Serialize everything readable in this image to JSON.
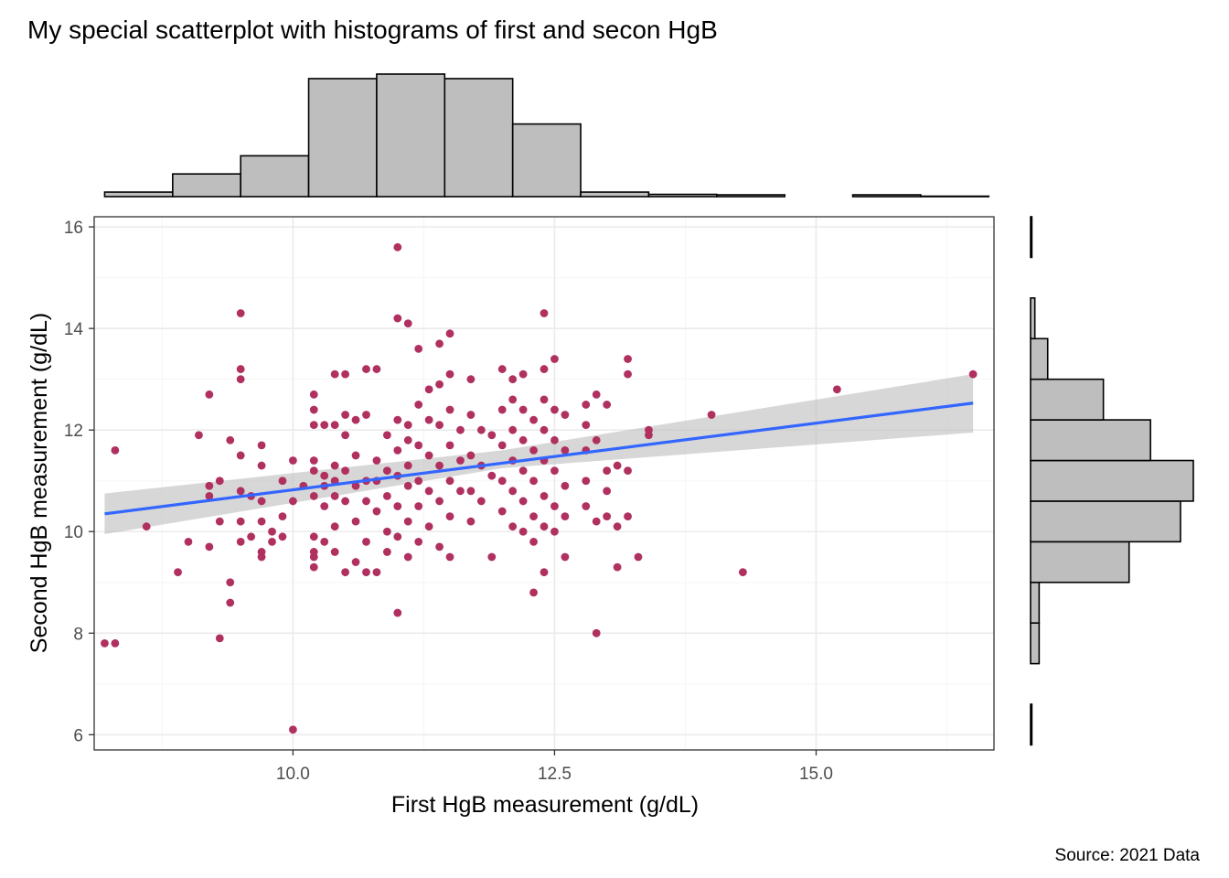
{
  "colors": {
    "points": "#b03060",
    "fit_line": "#3366ff",
    "ci_band": "#bdbdbd",
    "histogram_fill": "#bebebe",
    "grid_major": "#ebebeb",
    "grid_minor": "#f5f5f5",
    "panel_border": "#333333"
  },
  "chart_data": {
    "type": "scatter",
    "title": "My special scatterplot with histograms of first and secon HgB",
    "caption": "Source: 2021 Data",
    "xlabel": "First HgB measurement (g/dL)",
    "ylabel": "Second HgB measurement (g/dL)",
    "xlim": [
      8.1,
      16.7
    ],
    "ylim": [
      5.7,
      16.2
    ],
    "xticks": [
      10.0,
      12.5,
      15.0
    ],
    "xtick_labels": [
      "10.0",
      "12.5",
      "15.0"
    ],
    "yticks": [
      6,
      8,
      10,
      12,
      14,
      16
    ],
    "ytick_labels": [
      "6",
      "8",
      "10",
      "12",
      "14",
      "16"
    ],
    "grid": true,
    "points": [
      [
        8.2,
        7.8
      ],
      [
        8.3,
        7.8
      ],
      [
        8.3,
        11.6
      ],
      [
        8.6,
        10.1
      ],
      [
        8.9,
        9.2
      ],
      [
        9.0,
        9.8
      ],
      [
        9.1,
        11.9
      ],
      [
        9.2,
        10.9
      ],
      [
        9.2,
        10.7
      ],
      [
        9.2,
        9.7
      ],
      [
        9.2,
        12.7
      ],
      [
        9.3,
        11.0
      ],
      [
        9.3,
        10.2
      ],
      [
        9.3,
        7.9
      ],
      [
        9.4,
        9.0
      ],
      [
        9.4,
        8.6
      ],
      [
        9.4,
        11.8
      ],
      [
        9.5,
        14.3
      ],
      [
        9.5,
        13.2
      ],
      [
        9.5,
        13.0
      ],
      [
        9.5,
        11.5
      ],
      [
        9.5,
        10.8
      ],
      [
        9.5,
        10.2
      ],
      [
        9.5,
        9.8
      ],
      [
        9.6,
        10.7
      ],
      [
        9.6,
        9.9
      ],
      [
        9.7,
        11.7
      ],
      [
        9.7,
        11.3
      ],
      [
        9.7,
        10.6
      ],
      [
        9.7,
        10.2
      ],
      [
        9.7,
        9.6
      ],
      [
        9.7,
        9.5
      ],
      [
        9.8,
        10.0
      ],
      [
        9.8,
        9.8
      ],
      [
        9.9,
        11.0
      ],
      [
        9.9,
        10.3
      ],
      [
        9.9,
        9.9
      ],
      [
        10.0,
        11.4
      ],
      [
        10.0,
        10.6
      ],
      [
        10.0,
        6.1
      ],
      [
        10.1,
        10.9
      ],
      [
        10.2,
        12.7
      ],
      [
        10.2,
        12.4
      ],
      [
        10.2,
        12.1
      ],
      [
        10.2,
        11.4
      ],
      [
        10.2,
        11.2
      ],
      [
        10.2,
        10.7
      ],
      [
        10.2,
        9.9
      ],
      [
        10.2,
        9.6
      ],
      [
        10.2,
        9.5
      ],
      [
        10.2,
        9.3
      ],
      [
        10.3,
        12.1
      ],
      [
        10.3,
        11.1
      ],
      [
        10.3,
        10.9
      ],
      [
        10.3,
        10.5
      ],
      [
        10.3,
        9.8
      ],
      [
        10.4,
        13.1
      ],
      [
        10.4,
        12.1
      ],
      [
        10.4,
        11.3
      ],
      [
        10.4,
        11.0
      ],
      [
        10.4,
        10.7
      ],
      [
        10.4,
        10.1
      ],
      [
        10.4,
        9.6
      ],
      [
        10.5,
        13.1
      ],
      [
        10.5,
        12.3
      ],
      [
        10.5,
        11.9
      ],
      [
        10.5,
        11.2
      ],
      [
        10.5,
        10.6
      ],
      [
        10.5,
        9.2
      ],
      [
        10.6,
        12.2
      ],
      [
        10.6,
        11.5
      ],
      [
        10.6,
        10.9
      ],
      [
        10.6,
        10.2
      ],
      [
        10.6,
        9.4
      ],
      [
        10.7,
        13.2
      ],
      [
        10.7,
        12.3
      ],
      [
        10.7,
        11.0
      ],
      [
        10.7,
        10.6
      ],
      [
        10.7,
        9.8
      ],
      [
        10.7,
        9.2
      ],
      [
        10.8,
        13.2
      ],
      [
        10.8,
        11.4
      ],
      [
        10.8,
        11.0
      ],
      [
        10.8,
        10.4
      ],
      [
        10.8,
        9.2
      ],
      [
        10.9,
        11.9
      ],
      [
        10.9,
        11.2
      ],
      [
        10.9,
        10.7
      ],
      [
        10.9,
        10.0
      ],
      [
        10.9,
        9.6
      ],
      [
        11.0,
        14.2
      ],
      [
        11.0,
        12.2
      ],
      [
        11.0,
        11.6
      ],
      [
        11.0,
        11.1
      ],
      [
        11.0,
        10.5
      ],
      [
        11.0,
        9.9
      ],
      [
        11.0,
        8.4
      ],
      [
        11.0,
        15.6
      ],
      [
        11.1,
        14.1
      ],
      [
        11.1,
        12.1
      ],
      [
        11.1,
        11.8
      ],
      [
        11.1,
        11.3
      ],
      [
        11.1,
        10.9
      ],
      [
        11.1,
        10.2
      ],
      [
        11.1,
        9.5
      ],
      [
        11.2,
        13.6
      ],
      [
        11.2,
        12.5
      ],
      [
        11.2,
        11.7
      ],
      [
        11.2,
        11.0
      ],
      [
        11.2,
        10.5
      ],
      [
        11.2,
        9.8
      ],
      [
        11.3,
        12.8
      ],
      [
        11.3,
        12.2
      ],
      [
        11.3,
        11.5
      ],
      [
        11.3,
        10.8
      ],
      [
        11.3,
        10.1
      ],
      [
        11.4,
        13.7
      ],
      [
        11.4,
        12.9
      ],
      [
        11.4,
        12.1
      ],
      [
        11.4,
        11.3
      ],
      [
        11.4,
        10.6
      ],
      [
        11.4,
        9.7
      ],
      [
        11.5,
        13.9
      ],
      [
        11.5,
        13.1
      ],
      [
        11.5,
        12.4
      ],
      [
        11.5,
        11.7
      ],
      [
        11.5,
        11.0
      ],
      [
        11.5,
        10.3
      ],
      [
        11.5,
        9.5
      ],
      [
        11.6,
        12.0
      ],
      [
        11.6,
        11.4
      ],
      [
        11.6,
        10.8
      ],
      [
        11.7,
        13.0
      ],
      [
        11.7,
        12.3
      ],
      [
        11.7,
        11.5
      ],
      [
        11.7,
        10.8
      ],
      [
        11.7,
        10.2
      ],
      [
        11.8,
        12.0
      ],
      [
        11.8,
        11.3
      ],
      [
        11.8,
        10.6
      ],
      [
        11.9,
        11.9
      ],
      [
        11.9,
        11.1
      ],
      [
        11.9,
        9.5
      ],
      [
        12.0,
        13.2
      ],
      [
        12.0,
        12.4
      ],
      [
        12.0,
        11.7
      ],
      [
        12.0,
        11.0
      ],
      [
        12.0,
        10.4
      ],
      [
        12.1,
        13.0
      ],
      [
        12.1,
        12.6
      ],
      [
        12.1,
        12.0
      ],
      [
        12.1,
        11.4
      ],
      [
        12.1,
        10.8
      ],
      [
        12.1,
        10.1
      ],
      [
        12.2,
        13.1
      ],
      [
        12.2,
        12.4
      ],
      [
        12.2,
        11.8
      ],
      [
        12.2,
        11.2
      ],
      [
        12.2,
        10.6
      ],
      [
        12.2,
        10.0
      ],
      [
        12.3,
        12.2
      ],
      [
        12.3,
        11.6
      ],
      [
        12.3,
        11.0
      ],
      [
        12.3,
        10.3
      ],
      [
        12.3,
        9.8
      ],
      [
        12.3,
        8.8
      ],
      [
        12.4,
        14.3
      ],
      [
        12.4,
        13.2
      ],
      [
        12.4,
        12.6
      ],
      [
        12.4,
        12.0
      ],
      [
        12.4,
        11.4
      ],
      [
        12.4,
        10.7
      ],
      [
        12.4,
        10.1
      ],
      [
        12.4,
        9.2
      ],
      [
        12.5,
        13.4
      ],
      [
        12.5,
        12.4
      ],
      [
        12.5,
        11.8
      ],
      [
        12.5,
        11.2
      ],
      [
        12.5,
        10.5
      ],
      [
        12.5,
        10.0
      ],
      [
        12.6,
        12.3
      ],
      [
        12.6,
        11.6
      ],
      [
        12.6,
        10.9
      ],
      [
        12.6,
        10.3
      ],
      [
        12.6,
        9.5
      ],
      [
        12.8,
        12.5
      ],
      [
        12.8,
        12.1
      ],
      [
        12.8,
        11.6
      ],
      [
        12.8,
        11.0
      ],
      [
        12.8,
        10.5
      ],
      [
        12.9,
        12.7
      ],
      [
        12.9,
        11.8
      ],
      [
        12.9,
        10.2
      ],
      [
        12.9,
        8.0
      ],
      [
        13.0,
        12.5
      ],
      [
        13.0,
        11.2
      ],
      [
        13.0,
        10.8
      ],
      [
        13.0,
        10.3
      ],
      [
        13.1,
        11.3
      ],
      [
        13.1,
        10.1
      ],
      [
        13.1,
        9.3
      ],
      [
        13.2,
        13.4
      ],
      [
        13.2,
        13.1
      ],
      [
        13.2,
        11.2
      ],
      [
        13.2,
        10.3
      ],
      [
        13.3,
        9.5
      ],
      [
        13.4,
        12.0
      ],
      [
        13.4,
        11.9
      ],
      [
        14.0,
        12.3
      ],
      [
        14.3,
        9.2
      ],
      [
        15.2,
        12.8
      ],
      [
        16.5,
        13.1
      ]
    ],
    "fit_line": {
      "x": [
        8.2,
        16.5
      ],
      "y": [
        10.35,
        12.53
      ],
      "ci_low": [
        9.95,
        11.95
      ],
      "ci_high": [
        10.75,
        13.1
      ],
      "ci_mid_x": 12.0,
      "ci_mid_low": 11.25,
      "ci_mid_high": 11.6
    },
    "histogram_x": {
      "bins": [
        8.2,
        8.85,
        9.5,
        10.15,
        10.8,
        11.45,
        12.1,
        12.75,
        13.4,
        14.05,
        14.7,
        15.35,
        16.0,
        16.65
      ],
      "counts": [
        1,
        5,
        9,
        26,
        27,
        26,
        16,
        1,
        0.5,
        0.4,
        0,
        0.4,
        0.1
      ]
    },
    "histogram_y": {
      "bins": [
        5.8,
        6.6,
        7.4,
        8.2,
        9.0,
        9.8,
        10.6,
        11.4,
        12.2,
        13.0,
        13.8,
        14.6,
        15.4,
        16.2
      ],
      "counts": [
        0.3,
        0,
        2,
        2,
        23,
        35,
        38,
        28,
        17,
        4,
        1,
        0,
        0.3
      ]
    }
  }
}
